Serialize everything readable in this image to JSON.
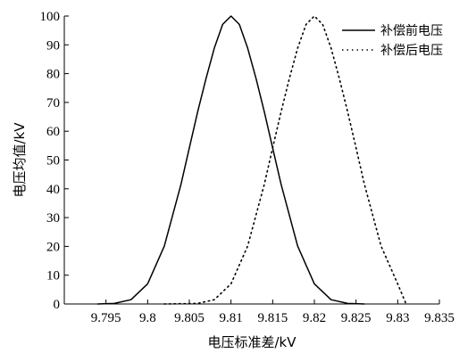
{
  "chart_data": {
    "type": "line",
    "title": "",
    "xlabel": "电压标准差/kV",
    "ylabel": "电压均值/kV",
    "xlim": [
      9.79,
      9.835
    ],
    "ylim": [
      0,
      100
    ],
    "x_ticks": [
      9.795,
      9.8,
      9.805,
      9.81,
      9.815,
      9.82,
      9.825,
      9.83,
      9.835
    ],
    "x_tick_labels": [
      "9.795",
      "9.8",
      "9.805",
      "9.81",
      "9.815",
      "9.82",
      "9.825",
      "9.83",
      "9.835"
    ],
    "y_ticks": [
      0,
      10,
      20,
      30,
      40,
      50,
      60,
      70,
      80,
      90,
      100
    ],
    "y_tick_labels": [
      "0",
      "10",
      "20",
      "30",
      "40",
      "50",
      "60",
      "70",
      "80",
      "90",
      "100"
    ],
    "grid": false,
    "legend_position": "top-right",
    "series": [
      {
        "name": "补偿前电压",
        "style": "solid",
        "color": "#000000",
        "x": [
          9.794,
          9.796,
          9.798,
          9.8,
          9.802,
          9.804,
          9.805,
          9.806,
          9.807,
          9.808,
          9.809,
          9.81,
          9.811,
          9.812,
          9.813,
          9.814,
          9.815,
          9.816,
          9.818,
          9.82,
          9.822,
          9.824,
          9.826
        ],
        "y": [
          0,
          0.2,
          1.5,
          7.0,
          20.1,
          41.6,
          54.2,
          66.7,
          78.3,
          88.9,
          97.1,
          100,
          97.1,
          88.9,
          78.3,
          66.7,
          54.2,
          41.6,
          20.1,
          7.0,
          1.5,
          0.2,
          0
        ]
      },
      {
        "name": "补偿后电压",
        "style": "dotted",
        "color": "#000000",
        "x": [
          9.802,
          9.806,
          9.808,
          9.81,
          9.812,
          9.814,
          9.815,
          9.816,
          9.817,
          9.818,
          9.819,
          9.82,
          9.821,
          9.822,
          9.823,
          9.824,
          9.825,
          9.826,
          9.828,
          9.83,
          9.831
        ],
        "y": [
          0,
          0.2,
          1.5,
          7.0,
          20.1,
          41.6,
          54.2,
          66.7,
          78.3,
          88.9,
          97.1,
          100,
          97.1,
          88.9,
          78.3,
          66.7,
          54.2,
          41.6,
          20.1,
          7.0,
          0
        ]
      }
    ]
  }
}
